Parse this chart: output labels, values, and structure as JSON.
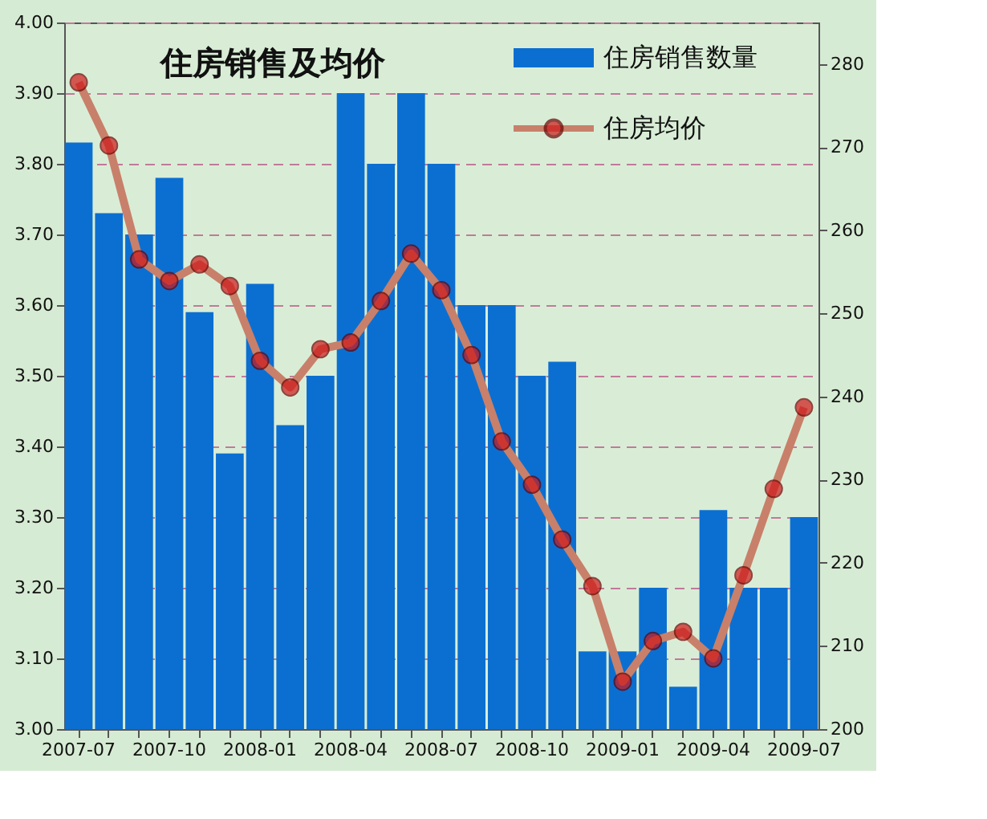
{
  "chart_data": {
    "type": "bar",
    "title": "住房销售及均价",
    "categories": [
      "2007-07",
      null,
      null,
      "2007-10",
      null,
      null,
      "2008-01",
      null,
      null,
      "2008-04",
      null,
      null,
      "2008-07",
      null,
      null,
      "2008-10",
      null,
      null,
      "2009-01",
      null,
      null,
      "2009-04",
      null,
      null,
      "2009-07"
    ],
    "series": [
      {
        "name": "住房销售数量",
        "color": "#0b6fd1",
        "values": [
          3.83,
          3.73,
          3.7,
          3.78,
          3.59,
          3.39,
          3.63,
          3.43,
          3.5,
          3.9,
          3.8,
          3.9,
          3.8,
          3.6,
          3.6,
          3.5,
          3.52,
          3.11,
          3.11,
          3.2,
          3.06,
          3.31,
          3.2,
          3.2,
          3.3
        ]
      },
      {
        "name": "住房均价",
        "type": "line",
        "axis": "y2",
        "color": "#c8806a",
        "marker": "circle",
        "values": [
          277.8,
          270.2,
          256.5,
          253.9,
          255.9,
          253.3,
          244.3,
          241.1,
          245.7,
          246.5,
          251.5,
          257.2,
          252.8,
          245.0,
          234.6,
          229.4,
          222.8,
          217.2,
          205.7,
          210.6,
          211.7,
          208.5,
          218.5,
          228.9,
          238.7
        ]
      }
    ],
    "ylim": [
      3.0,
      4.0
    ],
    "yticks": [
      {
        "value": 3.0,
        "label": "3.00"
      },
      {
        "value": 3.1,
        "label": "3.10"
      },
      {
        "value": 3.2,
        "label": "3.20"
      },
      {
        "value": 3.3,
        "label": "3.30"
      },
      {
        "value": 3.4,
        "label": "3.40"
      },
      {
        "value": 3.5,
        "label": "3.50"
      },
      {
        "value": 3.6,
        "label": "3.60"
      },
      {
        "value": 3.7,
        "label": "3.70"
      },
      {
        "value": 3.8,
        "label": "3.80"
      },
      {
        "value": 3.9,
        "label": "3.90"
      },
      {
        "value": 4.0,
        "label": "4.00"
      }
    ],
    "y2lim": [
      200,
      285
    ],
    "y2ticks": [
      200,
      210,
      220,
      230,
      240,
      250,
      260,
      270,
      280
    ],
    "grid": "y",
    "legend": "top right"
  }
}
